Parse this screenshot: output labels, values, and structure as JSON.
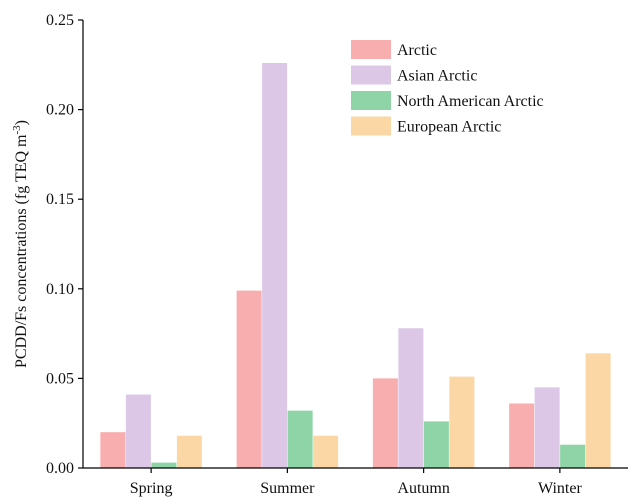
{
  "chart_data": {
    "type": "bar",
    "title": "",
    "xlabel": "",
    "ylabel": "PCDD/Fs concentrations (fg TEQ m",
    "ylabel_sup": "-3",
    "ylabel_suffix": ")",
    "ylim": [
      0,
      0.25
    ],
    "yticks": [
      "0.00",
      "0.05",
      "0.10",
      "0.15",
      "0.20",
      "0.25"
    ],
    "ytick_values": [
      0,
      0.05,
      0.1,
      0.15,
      0.2,
      0.25
    ],
    "categories": [
      "Spring",
      "Summer",
      "Autumn",
      "Winter"
    ],
    "legend_position": "top-right",
    "grid": false,
    "series": [
      {
        "name": "Arctic",
        "color": "#f8aeae",
        "values": [
          0.02,
          0.099,
          0.05,
          0.036
        ]
      },
      {
        "name": "Asian Arctic",
        "color": "#dcc8e6",
        "values": [
          0.041,
          0.226,
          0.078,
          0.045
        ]
      },
      {
        "name": "North American Arctic",
        "color": "#8fd4a6",
        "values": [
          0.003,
          0.032,
          0.026,
          0.013
        ]
      },
      {
        "name": "European Arctic",
        "color": "#fbd7a5",
        "values": [
          0.018,
          0.018,
          0.051,
          0.064
        ]
      }
    ]
  }
}
